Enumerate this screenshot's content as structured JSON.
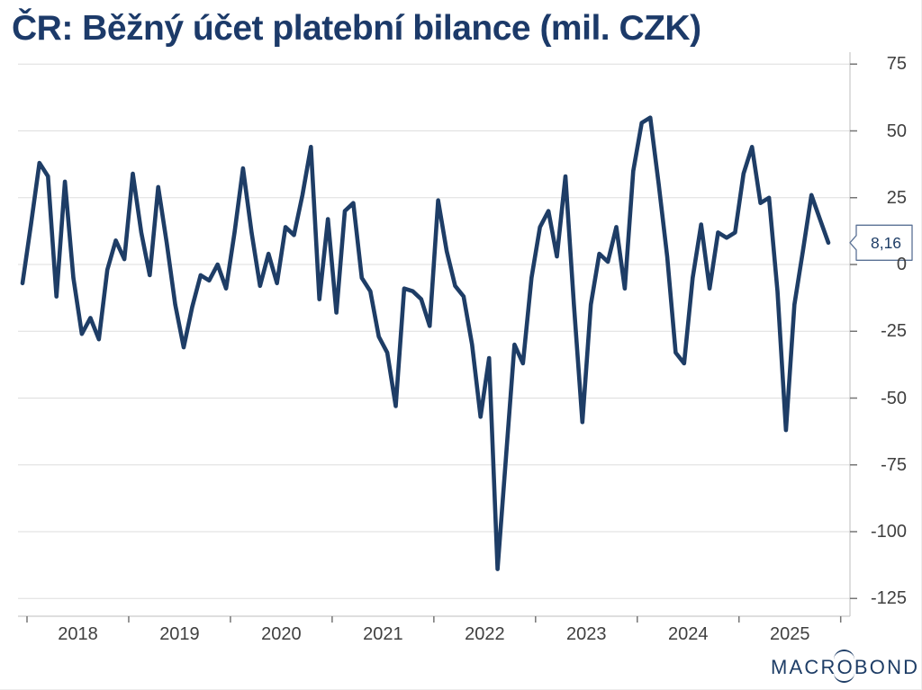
{
  "title": "ČR: Běžný účet platební bilance (mil. CZK)",
  "colors": {
    "line": "#1e3d66",
    "title": "#1c3a69",
    "grid": "#dedede",
    "axis_line": "#c9c9c9",
    "tick": "#757575",
    "label_text": "#3f3f3f",
    "callout_border": "#5a7195",
    "callout_text": "#1e3d66",
    "logo": "#1e3d66",
    "background": "#ffffff"
  },
  "y_axis": {
    "labels": [
      "75",
      "50",
      "25",
      "0",
      "-25",
      "-50",
      "-75",
      "-100",
      "-125"
    ]
  },
  "x_axis": {
    "years": [
      "2018",
      "2019",
      "2020",
      "2021",
      "2022",
      "2023",
      "2024",
      "2025"
    ]
  },
  "callout": {
    "label": "8,16"
  },
  "logo": {
    "left": "MACR",
    "o": "O",
    "right": "BOND"
  },
  "chart_data": {
    "type": "line",
    "title": "ČR: Běžný účet platební bilance (mil. CZK)",
    "ylabel": "mil. CZK",
    "ylim": [
      -125,
      75
    ],
    "y_ticks": [
      75,
      50,
      25,
      0,
      -25,
      -50,
      -75,
      -100,
      -125
    ],
    "x_tick_years": [
      2018,
      2019,
      2020,
      2021,
      2022,
      2023,
      2024,
      2025
    ],
    "frequency": "monthly",
    "last_value_label": "8,16",
    "last_value": 8.16,
    "grid": "horizontal",
    "legend": "none",
    "values": [
      -7,
      15,
      38,
      33,
      -12,
      31,
      -5,
      -26,
      -20,
      -28,
      -2,
      9,
      2,
      34,
      12,
      -4,
      29,
      8,
      -15,
      -31,
      -16,
      -4,
      -6,
      0,
      -9,
      12,
      36,
      12,
      -8,
      4,
      -7,
      14,
      11,
      26,
      44,
      -13,
      17,
      -18,
      20,
      23,
      -5,
      -10,
      -27,
      -33,
      -53,
      -9,
      -10,
      -13,
      -23,
      24,
      5,
      -8,
      -12,
      -30,
      -57,
      -35,
      -114,
      -72,
      -30,
      -37,
      -5,
      14,
      20,
      3,
      33,
      -15,
      -59,
      -15,
      4,
      1,
      14,
      -9,
      35,
      53,
      55,
      30,
      3,
      -33,
      -37,
      -5,
      15,
      -9,
      12,
      10,
      12,
      34,
      44,
      23,
      25,
      -10,
      -62,
      -15,
      5,
      26,
      17,
      8.16
    ]
  }
}
